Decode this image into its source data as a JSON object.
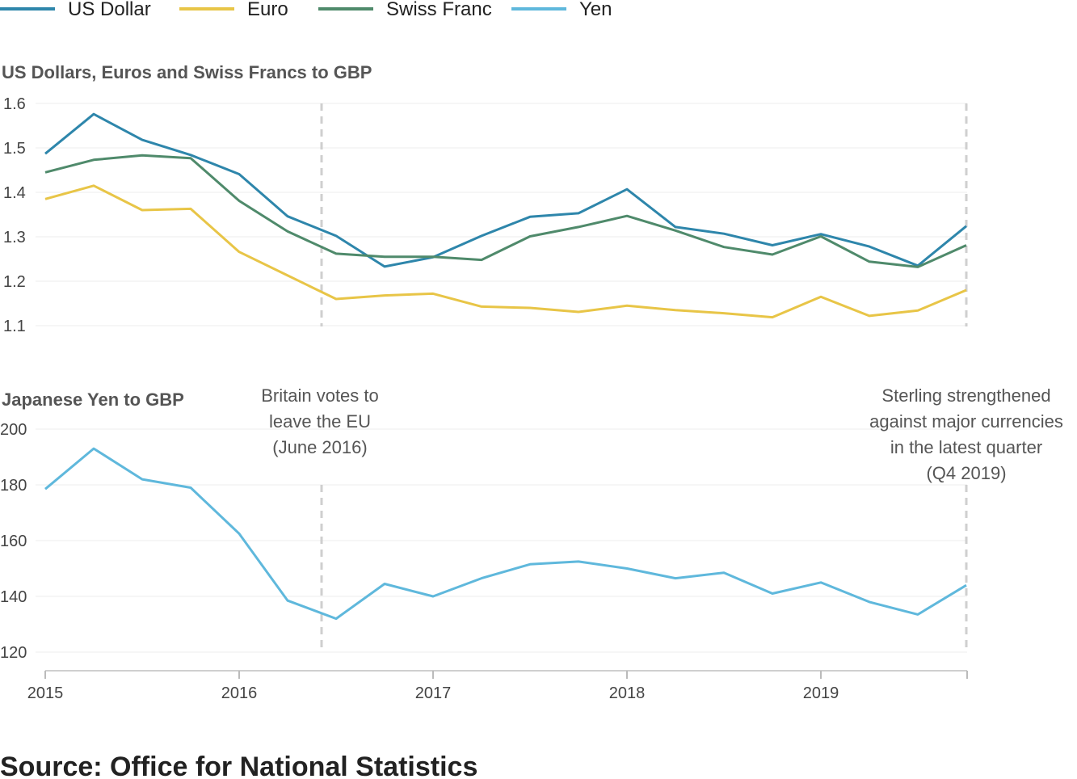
{
  "legend": [
    {
      "name": "US Dollar",
      "color": "#2e86ab"
    },
    {
      "name": "Euro",
      "color": "#e8c547"
    },
    {
      "name": "Swiss Franc",
      "color": "#4f8a6b"
    },
    {
      "name": "Yen",
      "color": "#5fb8dc"
    }
  ],
  "source": "Source: Office for National Statistics",
  "chart_data": [
    {
      "type": "line",
      "title": "US Dollars, Euros and Swiss Francs to GBP",
      "x": [
        "2015 Q1",
        "2015 Q2",
        "2015 Q3",
        "2015 Q4",
        "2016 Q1",
        "2016 Q2",
        "2016 Q3",
        "2016 Q4",
        "2017 Q1",
        "2017 Q2",
        "2017 Q3",
        "2017 Q4",
        "2018 Q1",
        "2018 Q2",
        "2018 Q3",
        "2018 Q4",
        "2019 Q1",
        "2019 Q2",
        "2019 Q3",
        "2019 Q4"
      ],
      "yticks": [
        1.1,
        1.2,
        1.3,
        1.4,
        1.5,
        1.6
      ],
      "ylim": [
        1.1,
        1.6
      ],
      "series": [
        {
          "name": "US Dollar",
          "color": "#2e86ab",
          "values": [
            1.487,
            1.576,
            1.518,
            1.484,
            1.441,
            1.346,
            1.302,
            1.233,
            1.254,
            1.302,
            1.345,
            1.353,
            1.407,
            1.322,
            1.307,
            1.281,
            1.306,
            1.278,
            1.235,
            1.324
          ]
        },
        {
          "name": "Euro",
          "color": "#e8c547",
          "values": [
            1.385,
            1.415,
            1.36,
            1.363,
            1.266,
            1.213,
            1.16,
            1.168,
            1.172,
            1.143,
            1.14,
            1.131,
            1.145,
            1.135,
            1.128,
            1.119,
            1.165,
            1.122,
            1.134,
            1.18
          ]
        },
        {
          "name": "Swiss Franc",
          "color": "#4f8a6b",
          "values": [
            1.445,
            1.473,
            1.483,
            1.477,
            1.381,
            1.312,
            1.262,
            1.255,
            1.255,
            1.248,
            1.301,
            1.322,
            1.347,
            1.314,
            1.277,
            1.26,
            1.301,
            1.244,
            1.232,
            1.281
          ]
        }
      ]
    },
    {
      "type": "line",
      "title": "Japanese Yen to GBP",
      "x": [
        "2015 Q1",
        "2015 Q2",
        "2015 Q3",
        "2015 Q4",
        "2016 Q1",
        "2016 Q2",
        "2016 Q3",
        "2016 Q4",
        "2017 Q1",
        "2017 Q2",
        "2017 Q3",
        "2017 Q4",
        "2018 Q1",
        "2018 Q2",
        "2018 Q3",
        "2018 Q4",
        "2019 Q1",
        "2019 Q2",
        "2019 Q3",
        "2019 Q4"
      ],
      "xticks": [
        "2015",
        "2016",
        "2017",
        "2018",
        "2019"
      ],
      "yticks": [
        120,
        140,
        160,
        180,
        200
      ],
      "ylim": [
        120,
        200
      ],
      "series": [
        {
          "name": "Yen",
          "color": "#5fb8dc",
          "values": [
            178.5,
            193,
            182,
            179,
            162.5,
            138.5,
            132,
            144.5,
            140,
            146.5,
            151.5,
            152.5,
            150,
            146.5,
            148.5,
            141,
            145,
            138,
            133.5,
            144
          ]
        }
      ],
      "annotations": [
        {
          "lines": [
            "Britain votes to",
            "leave the EU",
            "(June 2016)"
          ]
        },
        {
          "lines": [
            "Sterling strengthened",
            "against major currencies",
            "in the latest quarter",
            "(Q4 2019)"
          ]
        }
      ]
    }
  ]
}
